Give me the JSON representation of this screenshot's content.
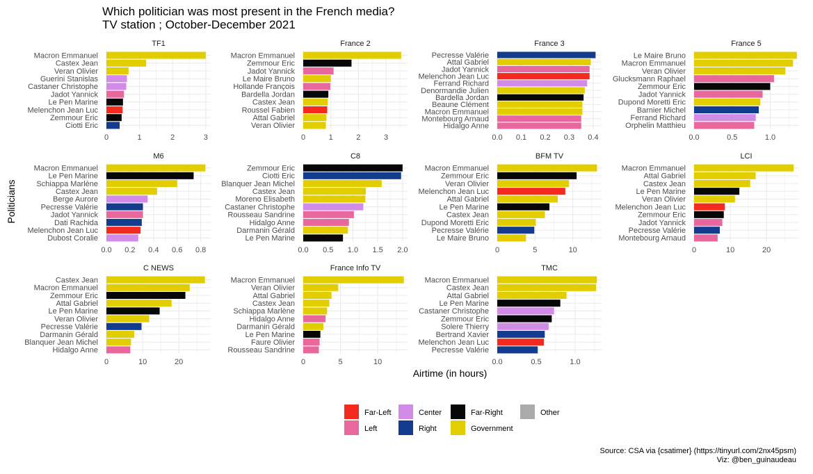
{
  "title_line1": "Which politician was most present in the French media?",
  "title_line2": "TV station ; October-December 2021",
  "ylabel": "Politicians",
  "xlabel": "Airtime (in hours)",
  "caption_line1": "Source: CSA via {csatimer} (https://tinyurl.com/2nx45psm)",
  "caption_line2": "Viz: @ben_guinaudeau",
  "legend_items": [
    {
      "key": "far-left",
      "label": "Far-Left",
      "color": "#F42A1F"
    },
    {
      "key": "left",
      "label": "Left",
      "color": "#E8689E"
    },
    {
      "key": "center",
      "label": "Center",
      "color": "#D38BE8"
    },
    {
      "key": "right",
      "label": "Right",
      "color": "#133C8E"
    },
    {
      "key": "far-right",
      "label": "Far-Right",
      "color": "#070707"
    },
    {
      "key": "government",
      "label": "Government",
      "color": "#E2CE00"
    },
    {
      "key": "other",
      "label": "Other",
      "color": "#AAAAAA"
    }
  ],
  "chart_data": [
    {
      "type": "bar",
      "orientation": "horizontal",
      "title": "TF1",
      "xlim": [
        0,
        3.15
      ],
      "xticks": [
        0,
        1,
        2,
        3
      ],
      "categories": [
        "Macron Emmanuel",
        "Castex Jean",
        "Veran Olivier",
        "Guerini Stanislas",
        "Castaner Christophe",
        "Jadot Yannick",
        "Le Pen Marine",
        "Melenchon Jean Luc",
        "Zemmour Eric",
        "Ciotti Eric"
      ],
      "values": [
        3.0,
        1.2,
        0.67,
        0.62,
        0.6,
        0.53,
        0.5,
        0.49,
        0.46,
        0.4
      ],
      "groups": [
        "government",
        "government",
        "government",
        "center",
        "center",
        "left",
        "far-right",
        "far-left",
        "far-right",
        "right"
      ]
    },
    {
      "type": "bar",
      "orientation": "horizontal",
      "title": "France 2",
      "xlim": [
        0,
        3.78
      ],
      "xticks": [
        0,
        1,
        2,
        3
      ],
      "categories": [
        "Macron Emmanuel",
        "Zemmour Eric",
        "Jadot Yannick",
        "Le Maire Bruno",
        "Hollande François",
        "Bardella Jordan",
        "Castex Jean",
        "Roussel Fabien",
        "Attal Gabriel",
        "Veran Olivier"
      ],
      "values": [
        3.55,
        1.75,
        1.1,
        1.0,
        0.98,
        0.91,
        0.89,
        0.87,
        0.84,
        0.82
      ],
      "groups": [
        "government",
        "far-right",
        "left",
        "government",
        "left",
        "far-right",
        "government",
        "far-left",
        "government",
        "government"
      ]
    },
    {
      "type": "bar",
      "orientation": "horizontal",
      "title": "France 3",
      "xlim": [
        0,
        0.435
      ],
      "xticks": [
        0.0,
        0.1,
        0.2,
        0.3,
        0.4
      ],
      "categories": [
        "Pecresse Valérie",
        "Attal Gabriel",
        "Jadot Yannick",
        "Melenchon Jean Luc",
        "Ferrand Richard",
        "Denormandie Julien",
        "Bardella Jordan",
        "Beaune Clément",
        "Macron Emmanuel",
        "Montebourg Arnaud",
        "Hidalgo Anne"
      ],
      "values": [
        0.41,
        0.39,
        0.385,
        0.385,
        0.375,
        0.365,
        0.36,
        0.355,
        0.355,
        0.35,
        0.35
      ],
      "groups": [
        "right",
        "government",
        "left",
        "far-left",
        "center",
        "government",
        "far-right",
        "government",
        "government",
        "left",
        "left"
      ]
    },
    {
      "type": "bar",
      "orientation": "horizontal",
      "title": "France 5",
      "xlim": [
        0,
        1.37
      ],
      "xticks": [
        0.0,
        0.5,
        1.0
      ],
      "categories": [
        "Le Maire Bruno",
        "Macron Emmanuel",
        "Veran Olivier",
        "Glucksmann Raphael",
        "Zemmour Eric",
        "Jadot Yannick",
        "Dupond Moretti Eric",
        "Barnier Michel",
        "Ferrand Richard",
        "Orphelin Matthieu"
      ],
      "values": [
        1.35,
        1.3,
        1.2,
        1.05,
        1.0,
        0.9,
        0.87,
        0.85,
        0.81,
        0.79
      ],
      "groups": [
        "government",
        "government",
        "government",
        "left",
        "far-right",
        "left",
        "government",
        "right",
        "center",
        "left"
      ]
    },
    {
      "type": "bar",
      "orientation": "horizontal",
      "title": "M6",
      "xlim": [
        0,
        0.885
      ],
      "xticks": [
        0.0,
        0.2,
        0.4,
        0.6,
        0.8
      ],
      "categories": [
        "Macron Emmanuel",
        "Le Pen Marine",
        "Schiappa Marlène",
        "Castex Jean",
        "Berge Aurore",
        "Pecresse Valérie",
        "Jadot Yannick",
        "Dati Rachida",
        "Melenchon Jean Luc",
        "Dubost Coralie"
      ],
      "values": [
        0.84,
        0.74,
        0.6,
        0.43,
        0.35,
        0.31,
        0.31,
        0.3,
        0.29,
        0.27
      ],
      "groups": [
        "government",
        "far-right",
        "government",
        "government",
        "center",
        "right",
        "left",
        "right",
        "far-left",
        "center"
      ]
    },
    {
      "type": "bar",
      "orientation": "horizontal",
      "title": "C8",
      "xlim": [
        0,
        2.1
      ],
      "xticks": [
        0.0,
        0.5,
        1.0,
        1.5,
        2.0
      ],
      "categories": [
        "Zemmour Eric",
        "Ciotti Eric",
        "Blanquer Jean Michel",
        "Castex Jean",
        "Moreno Elisabeth",
        "Castaner Christophe",
        "Rousseau Sandrine",
        "Hidalgo Anne",
        "Darmanin Gérald",
        "Le Pen Marine"
      ],
      "values": [
        2.0,
        1.97,
        1.58,
        1.26,
        1.25,
        1.21,
        1.02,
        0.92,
        0.9,
        0.8
      ],
      "groups": [
        "far-right",
        "right",
        "government",
        "government",
        "government",
        "center",
        "left",
        "left",
        "government",
        "far-right"
      ]
    },
    {
      "type": "bar",
      "orientation": "horizontal",
      "title": "BFM TV",
      "xlim": [
        0,
        13.8
      ],
      "xticks": [
        0,
        5,
        10
      ],
      "categories": [
        "Macron Emmanuel",
        "Zemmour Eric",
        "Veran Olivier",
        "Melenchon Jean Luc",
        "Attal Gabriel",
        "Le Pen Marine",
        "Castex Jean",
        "Dupond Moretti Eric",
        "Pecresse Valérie",
        "Le Maire Bruno"
      ],
      "values": [
        13.2,
        10.5,
        9.5,
        9.0,
        8.0,
        6.9,
        6.3,
        5.1,
        4.9,
        3.8
      ],
      "groups": [
        "government",
        "far-right",
        "government",
        "far-left",
        "government",
        "far-right",
        "government",
        "government",
        "right",
        "government"
      ]
    },
    {
      "type": "bar",
      "orientation": "horizontal",
      "title": "LCI",
      "xlim": [
        0,
        28.8
      ],
      "xticks": [
        0,
        10,
        20
      ],
      "categories": [
        "Macron Emmanuel",
        "Attal Gabriel",
        "Castex Jean",
        "Le Pen Marine",
        "Veran Olivier",
        "Melenchon Jean Luc",
        "Zemmour Eric",
        "Jadot Yannick",
        "Pecresse Valérie",
        "Montebourg Arnaud"
      ],
      "values": [
        27.5,
        17.0,
        15.5,
        12.5,
        11.3,
        8.5,
        8.2,
        7.8,
        7.1,
        6.5
      ],
      "groups": [
        "government",
        "government",
        "government",
        "far-right",
        "government",
        "far-left",
        "far-right",
        "left",
        "right",
        "left"
      ]
    },
    {
      "type": "bar",
      "orientation": "horizontal",
      "title": "C NEWS",
      "xlim": [
        0,
        28.8
      ],
      "xticks": [
        0,
        10,
        20
      ],
      "categories": [
        "Castex Jean",
        "Macron Emmanuel",
        "Zemmour Eric",
        "Attal Gabriel",
        "Le Pen Marine",
        "Veran Olivier",
        "Pecresse Valérie",
        "Darmanin Gérald",
        "Blanquer Jean Michel",
        "Hidalgo Anne"
      ],
      "values": [
        27.2,
        23.0,
        21.8,
        18.0,
        14.7,
        11.8,
        9.7,
        7.7,
        6.8,
        6.6
      ],
      "groups": [
        "government",
        "government",
        "far-right",
        "government",
        "far-right",
        "government",
        "right",
        "government",
        "government",
        "left"
      ]
    },
    {
      "type": "bar",
      "orientation": "horizontal",
      "title": "France Info TV",
      "xlim": [
        0,
        14.0
      ],
      "xticks": [
        0,
        5,
        10
      ],
      "categories": [
        "Macron Emmanuel",
        "Veran Olivier",
        "Attal Gabriel",
        "Castex Jean",
        "Schiappa Marlène",
        "Hidalgo Anne",
        "Darmanin Gérald",
        "Le Pen Marine",
        "Faure Olivier",
        "Rousseau Sandrine"
      ],
      "values": [
        13.5,
        4.7,
        3.8,
        3.5,
        3.2,
        3.0,
        2.7,
        2.3,
        2.2,
        2.1
      ],
      "groups": [
        "government",
        "government",
        "government",
        "government",
        "government",
        "left",
        "government",
        "far-right",
        "left",
        "left"
      ]
    },
    {
      "type": "bar",
      "orientation": "horizontal",
      "title": "TMC",
      "xlim": [
        0,
        1.34
      ],
      "xticks": [
        0.0,
        0.5,
        1.0
      ],
      "categories": [
        "Macron Emmanuel",
        "Castex Jean",
        "Attal Gabriel",
        "Le Pen Marine",
        "Castaner Christophe",
        "Zemmour Eric",
        "Solere Thierry",
        "Bertrand Xavier",
        "Melenchon Jean Luc",
        "Pecresse Valérie"
      ],
      "values": [
        1.28,
        1.27,
        0.89,
        0.81,
        0.73,
        0.7,
        0.66,
        0.61,
        0.6,
        0.52
      ],
      "groups": [
        "government",
        "government",
        "government",
        "far-right",
        "center",
        "far-right",
        "center",
        "right",
        "far-left",
        "right"
      ]
    }
  ]
}
